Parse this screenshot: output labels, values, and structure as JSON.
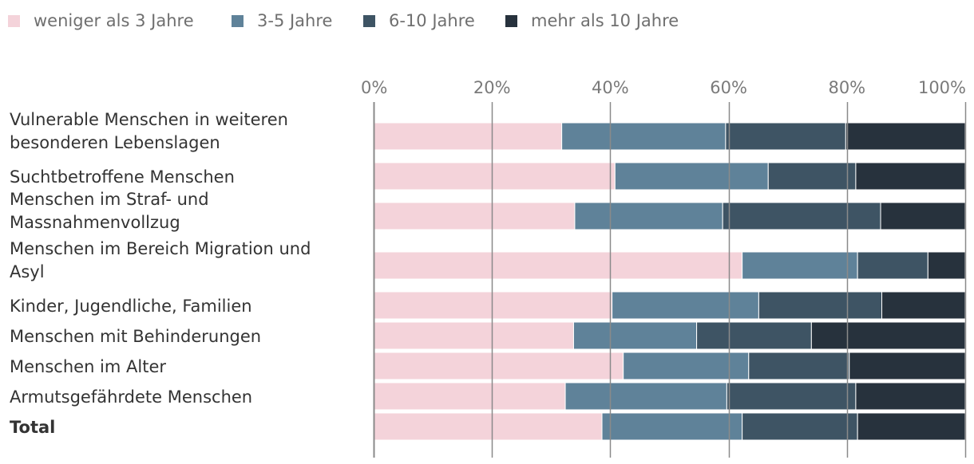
{
  "chart_data": {
    "type": "bar",
    "orientation": "horizontal",
    "stacked": true,
    "percent": true,
    "title": "",
    "xlabel": "",
    "ylabel": "",
    "xlim": [
      0,
      100
    ],
    "ticks": [
      "0%",
      "20%",
      "40%",
      "60%",
      "80%",
      "100%"
    ],
    "tick_values": [
      0,
      20,
      40,
      60,
      80,
      100
    ],
    "legend_position": "top-left",
    "categories": [
      "Vulnerable Menschen in weiteren besonderen Lebenslagen",
      "Suchtbetroffene Menschen",
      "Menschen im Straf- und Massnahmenvollzug",
      "Menschen im Bereich Migration und Asyl",
      "Kinder, Jugendliche, Familien",
      "Menschen mit Behinderungen",
      "Menschen im Alter",
      "Armutsgefährdete Menschen",
      "Total"
    ],
    "category_lines": [
      [
        "Vulnerable Menschen in weiteren",
        "besonderen Lebenslagen"
      ],
      [
        "Suchtbetroffene Menschen"
      ],
      [
        "Menschen im Straf- und",
        "Massnahmenvollzug"
      ],
      [
        "Menschen im Bereich Migration und",
        "Asyl"
      ],
      [
        "Kinder, Jugendliche, Familien"
      ],
      [
        "Menschen mit Behinderungen"
      ],
      [
        "Menschen im Alter"
      ],
      [
        "Armutsgefährdete Menschen"
      ],
      [
        "Total"
      ]
    ],
    "bold_categories": [
      "Total"
    ],
    "series": [
      {
        "name": "weniger als 3 Jahre",
        "color": "#f4d3da",
        "values": [
          31.8,
          40.8,
          34.0,
          62.3,
          40.3,
          33.8,
          42.2,
          32.4,
          38.6
        ]
      },
      {
        "name": "3-5 Jahre",
        "color": "#5f8299",
        "values": [
          27.7,
          25.9,
          25.0,
          19.5,
          24.8,
          20.8,
          21.2,
          27.3,
          23.7
        ]
      },
      {
        "name": "6-10 Jahre",
        "color": "#3e5464",
        "values": [
          20.3,
          14.8,
          26.7,
          11.9,
          20.8,
          19.4,
          17.0,
          21.8,
          19.5
        ]
      },
      {
        "name": "mehr als 10 Jahre",
        "color": "#27323d",
        "values": [
          20.2,
          18.5,
          14.3,
          6.3,
          14.1,
          26.0,
          19.6,
          18.5,
          18.2
        ]
      }
    ]
  }
}
